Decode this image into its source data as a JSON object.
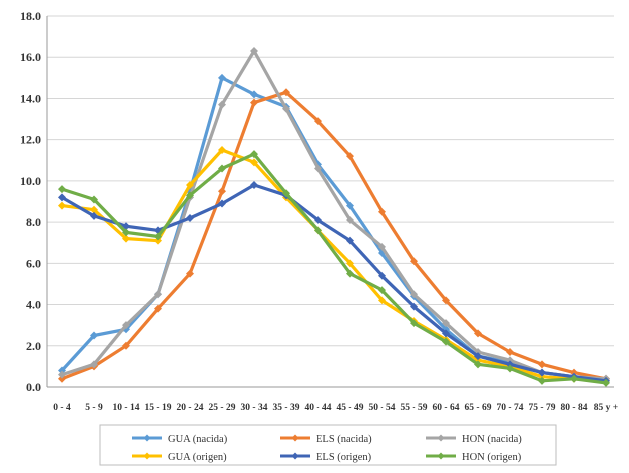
{
  "chart_data": {
    "type": "line",
    "title": "",
    "xlabel": "",
    "ylabel": "",
    "ylim": [
      0,
      18
    ],
    "yticks": [
      "0.0",
      "2.0",
      "4.0",
      "6.0",
      "8.0",
      "10.0",
      "12.0",
      "14.0",
      "16.0",
      "18.0"
    ],
    "grid": true,
    "legend_position": "bottom",
    "categories": [
      "0 - 4",
      "5 - 9",
      "10 - 14",
      "15 - 19",
      "20 - 24",
      "25 - 29",
      "30 - 34",
      "35 - 39",
      "40 - 44",
      "45 - 49",
      "50 - 54",
      "55 - 59",
      "60 - 64",
      "65 - 69",
      "70 - 74",
      "75 - 79",
      "80 - 84",
      "85 y +"
    ],
    "series": [
      {
        "name": "GUA (nacida)",
        "color": "#5b9bd5",
        "values": [
          0.8,
          2.5,
          2.8,
          4.5,
          9.5,
          15.0,
          14.2,
          13.6,
          10.8,
          8.8,
          6.5,
          4.4,
          2.8,
          1.5,
          1.2,
          0.7,
          0.5,
          0.4
        ]
      },
      {
        "name": "ELS (nacida)",
        "color": "#ed7d31",
        "values": [
          0.4,
          1.0,
          2.0,
          3.8,
          5.5,
          9.5,
          13.8,
          14.3,
          12.9,
          11.2,
          8.5,
          6.1,
          4.2,
          2.6,
          1.7,
          1.1,
          0.7,
          0.4
        ]
      },
      {
        "name": "HON (nacida)",
        "color": "#a5a5a5",
        "values": [
          0.6,
          1.1,
          3.0,
          4.5,
          9.2,
          13.7,
          16.3,
          13.5,
          10.6,
          8.1,
          6.8,
          4.5,
          3.1,
          1.7,
          1.3,
          0.7,
          0.5,
          0.4
        ]
      },
      {
        "name": "GUA (origen)",
        "color": "#ffc000",
        "values": [
          8.8,
          8.6,
          7.2,
          7.1,
          9.8,
          11.5,
          10.9,
          9.2,
          7.6,
          6.0,
          4.2,
          3.2,
          2.3,
          1.3,
          1.0,
          0.5,
          0.4,
          0.3
        ]
      },
      {
        "name": "ELS (origen)",
        "color": "#3f65b5",
        "values": [
          9.2,
          8.3,
          7.8,
          7.6,
          8.2,
          8.9,
          9.8,
          9.3,
          8.1,
          7.1,
          5.4,
          3.9,
          2.6,
          1.5,
          1.1,
          0.7,
          0.5,
          0.3
        ]
      },
      {
        "name": "HON (origen)",
        "color": "#70ad47",
        "values": [
          9.6,
          9.1,
          7.5,
          7.3,
          9.3,
          10.6,
          11.3,
          9.4,
          7.6,
          5.5,
          4.7,
          3.1,
          2.2,
          1.1,
          0.9,
          0.3,
          0.4,
          0.2
        ]
      }
    ]
  }
}
